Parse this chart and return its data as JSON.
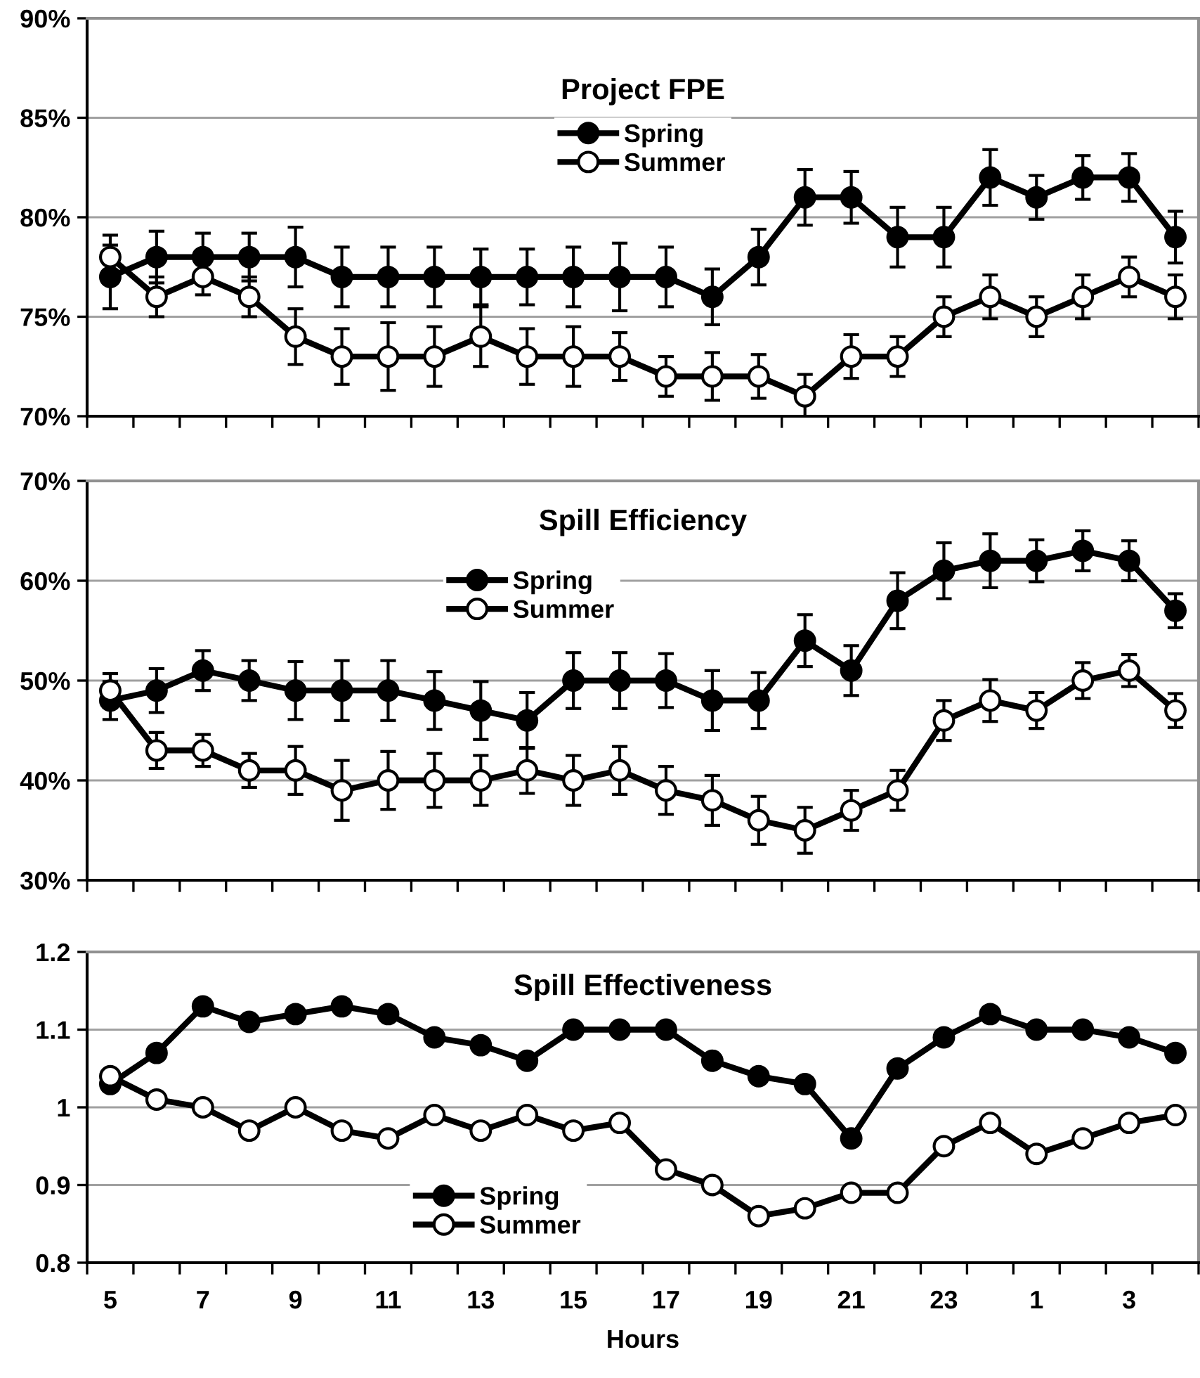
{
  "chart_data": [
    {
      "type": "line",
      "title": "Project FPE",
      "categories": [
        "5",
        null,
        "7",
        null,
        "9",
        null,
        "11",
        null,
        "13",
        null,
        "15",
        null,
        "17",
        null,
        "19",
        null,
        "21",
        null,
        "23",
        null,
        "1",
        null,
        "3",
        null
      ],
      "series": [
        {
          "name": "Spring",
          "color": "#000000",
          "values": [
            77,
            78,
            78,
            78,
            78,
            77,
            77,
            77,
            77,
            77,
            77,
            77,
            77,
            76,
            78,
            81,
            81,
            79,
            79,
            82,
            81,
            82,
            82,
            79
          ],
          "errors": [
            1.6,
            1.3,
            1.2,
            1.2,
            1.5,
            1.5,
            1.5,
            1.5,
            1.4,
            1.4,
            1.5,
            1.7,
            1.5,
            1.4,
            1.4,
            1.4,
            1.3,
            1.5,
            1.5,
            1.4,
            1.1,
            1.1,
            1.2,
            1.3
          ]
        },
        {
          "name": "Summer",
          "color": "#ffffff",
          "values": [
            78,
            76,
            77,
            76,
            74,
            73,
            73,
            73,
            74,
            73,
            73,
            73,
            72,
            72,
            72,
            71,
            73,
            73,
            75,
            76,
            75,
            76,
            77,
            76
          ],
          "errors": [
            1.1,
            1.0,
            0.9,
            1.0,
            1.4,
            1.4,
            1.7,
            1.5,
            1.5,
            1.4,
            1.5,
            1.2,
            1.0,
            1.2,
            1.1,
            1.1,
            1.1,
            1.0,
            1.0,
            1.1,
            1.0,
            1.1,
            1.0,
            1.1
          ]
        }
      ],
      "ylim": [
        70,
        90
      ],
      "yticks": [
        {
          "value": 70,
          "label": "70%"
        },
        {
          "value": 75,
          "label": "75%"
        },
        {
          "value": 80,
          "label": "80%"
        },
        {
          "value": 85,
          "label": "85%"
        },
        {
          "value": 90,
          "label": "90%"
        }
      ],
      "grid": "y",
      "legend": "top",
      "marker": "circle",
      "line_style": "solid",
      "tick_labels": "y"
    },
    {
      "type": "line",
      "title": "Spill Efficiency",
      "categories": [
        "5",
        null,
        "7",
        null,
        "9",
        null,
        "11",
        null,
        "13",
        null,
        "15",
        null,
        "17",
        null,
        "19",
        null,
        "21",
        null,
        "23",
        null,
        "1",
        null,
        "3",
        null
      ],
      "series": [
        {
          "name": "Spring",
          "color": "#000000",
          "values": [
            48,
            49,
            51,
            50,
            49,
            49,
            49,
            48,
            47,
            46,
            50,
            50,
            50,
            48,
            48,
            54,
            51,
            58,
            61,
            62,
            62,
            63,
            62,
            57
          ],
          "errors": [
            1.9,
            2.2,
            2.0,
            2.0,
            2.9,
            3.0,
            3.0,
            2.9,
            2.9,
            2.8,
            2.8,
            2.8,
            2.7,
            3.0,
            2.8,
            2.6,
            2.5,
            2.8,
            2.8,
            2.7,
            2.1,
            2.0,
            2.0,
            1.7
          ]
        },
        {
          "name": "Summer",
          "color": "#ffffff",
          "values": [
            49,
            43,
            43,
            41,
            41,
            39,
            40,
            40,
            40,
            41,
            40,
            41,
            39,
            38,
            36,
            35,
            37,
            39,
            46,
            48,
            47,
            50,
            51,
            47
          ],
          "errors": [
            1.7,
            1.8,
            1.6,
            1.7,
            2.4,
            3.0,
            2.9,
            2.7,
            2.5,
            2.3,
            2.5,
            2.4,
            2.4,
            2.5,
            2.4,
            2.3,
            2.0,
            2.0,
            2.0,
            2.1,
            1.8,
            1.8,
            1.6,
            1.7
          ]
        }
      ],
      "ylim": [
        30,
        70
      ],
      "yticks": [
        {
          "value": 30,
          "label": "30%"
        },
        {
          "value": 40,
          "label": "40%"
        },
        {
          "value": 50,
          "label": "50%"
        },
        {
          "value": 60,
          "label": "60%"
        },
        {
          "value": 70,
          "label": "70%"
        }
      ],
      "grid": "y",
      "legend": "top",
      "marker": "circle",
      "line_style": "solid",
      "tick_labels": "y"
    },
    {
      "type": "line",
      "title": "Spill Effectiveness",
      "xlabel": "Hours",
      "categories": [
        "5",
        null,
        "7",
        null,
        "9",
        null,
        "11",
        null,
        "13",
        null,
        "15",
        null,
        "17",
        null,
        "19",
        null,
        "21",
        null,
        "23",
        null,
        "1",
        null,
        "3",
        null
      ],
      "series": [
        {
          "name": "Spring",
          "color": "#000000",
          "values": [
            1.03,
            1.07,
            1.13,
            1.11,
            1.12,
            1.13,
            1.12,
            1.09,
            1.08,
            1.06,
            1.1,
            1.1,
            1.1,
            1.06,
            1.04,
            1.03,
            0.96,
            1.05,
            1.09,
            1.12,
            1.1,
            1.1,
            1.09,
            1.07
          ]
        },
        {
          "name": "Summer",
          "color": "#ffffff",
          "values": [
            1.04,
            1.01,
            1.0,
            0.97,
            1.0,
            0.97,
            0.96,
            0.99,
            0.97,
            0.99,
            0.97,
            0.98,
            0.92,
            0.9,
            0.86,
            0.87,
            0.89,
            0.89,
            0.95,
            0.98,
            0.94,
            0.96,
            0.98,
            0.99
          ]
        }
      ],
      "ylim": [
        0.8,
        1.2
      ],
      "yticks": [
        0.8,
        0.9,
        1,
        1.1,
        1.2
      ],
      "grid": "y",
      "legend": "bottom",
      "marker": "circle",
      "line_style": "solid"
    }
  ]
}
